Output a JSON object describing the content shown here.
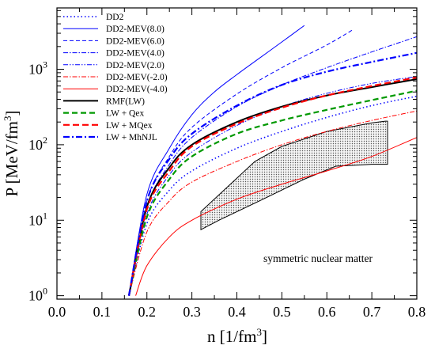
{
  "chart_data": {
    "type": "line",
    "title": "",
    "xlabel": "n [1/fm",
    "xlabel_sup": "3",
    "xlabel_tail": "]",
    "ylabel": "P [MeV/fm",
    "ylabel_sup": "3",
    "ylabel_tail": "]",
    "xlim": [
      0.0,
      0.8
    ],
    "ylim": [
      0.9,
      6500
    ],
    "y_scale": "log",
    "x_ticks": [
      "0.0",
      "0.1",
      "0.2",
      "0.3",
      "0.4",
      "0.5",
      "0.6",
      "0.7",
      "0.8"
    ],
    "x_tick_values": [
      0.0,
      0.1,
      0.2,
      0.3,
      0.4,
      0.5,
      0.6,
      0.7,
      0.8
    ],
    "y_ticks": [
      {
        "base": "10",
        "exp": "0",
        "value": 1
      },
      {
        "base": "10",
        "exp": "1",
        "value": 10
      },
      {
        "base": "10",
        "exp": "2",
        "value": 100
      },
      {
        "base": "10",
        "exp": "3",
        "value": 1000
      }
    ],
    "grid": false,
    "legend_position": "top-left",
    "annotation": "symmetric nuclear matter",
    "band": {
      "upper": [
        [
          0.32,
          13
        ],
        [
          0.44,
          60
        ],
        [
          0.5,
          95
        ],
        [
          0.6,
          150
        ],
        [
          0.7,
          195
        ],
        [
          0.73,
          205
        ],
        [
          0.735,
          205
        ]
      ],
      "lower": [
        [
          0.32,
          7.5
        ],
        [
          0.36,
          10
        ],
        [
          0.45,
          18
        ],
        [
          0.55,
          35
        ],
        [
          0.62,
          52
        ],
        [
          0.7,
          55
        ],
        [
          0.735,
          55
        ]
      ]
    },
    "series": [
      {
        "name": "DD2",
        "color": "#0000ff",
        "dash": "1.5,3",
        "width": 1.5,
        "points": [
          [
            0.16,
            1
          ],
          [
            0.2,
            9
          ],
          [
            0.25,
            25
          ],
          [
            0.3,
            45
          ],
          [
            0.4,
            90
          ],
          [
            0.5,
            150
          ],
          [
            0.6,
            230
          ],
          [
            0.7,
            330
          ],
          [
            0.8,
            440
          ]
        ]
      },
      {
        "name": "DD2-MEV(8.0)",
        "color": "#0000ff",
        "dash": "",
        "width": 1,
        "points": [
          [
            0.16,
            1
          ],
          [
            0.2,
            22
          ],
          [
            0.25,
            90
          ],
          [
            0.3,
            250
          ],
          [
            0.35,
            500
          ],
          [
            0.4,
            850
          ],
          [
            0.45,
            1400
          ],
          [
            0.5,
            2300
          ],
          [
            0.55,
            3800
          ]
        ]
      },
      {
        "name": "DD2-MEV(6.0)",
        "color": "#0000ff",
        "dash": "5,3",
        "width": 1,
        "points": [
          [
            0.16,
            1
          ],
          [
            0.2,
            18
          ],
          [
            0.25,
            70
          ],
          [
            0.3,
            170
          ],
          [
            0.4,
            470
          ],
          [
            0.5,
            1050
          ],
          [
            0.6,
            2100
          ],
          [
            0.66,
            3400
          ]
        ]
      },
      {
        "name": "DD2-MEV(4.0)",
        "color": "#0000ff",
        "dash": "6,2,1.5,2",
        "width": 1,
        "points": [
          [
            0.16,
            1
          ],
          [
            0.2,
            15
          ],
          [
            0.25,
            55
          ],
          [
            0.3,
            125
          ],
          [
            0.4,
            320
          ],
          [
            0.5,
            620
          ],
          [
            0.6,
            1050
          ],
          [
            0.7,
            1700
          ],
          [
            0.8,
            2700
          ]
        ]
      },
      {
        "name": "DD2-MEV(2.0)",
        "color": "#0000ff",
        "dash": "6,2,1.5,2,1.5,2",
        "width": 1,
        "points": [
          [
            0.16,
            1
          ],
          [
            0.2,
            12
          ],
          [
            0.25,
            40
          ],
          [
            0.3,
            80
          ],
          [
            0.4,
            180
          ],
          [
            0.5,
            320
          ],
          [
            0.6,
            480
          ],
          [
            0.7,
            650
          ],
          [
            0.8,
            800
          ]
        ]
      },
      {
        "name": "DD2-MEV(-2.0)",
        "color": "#ff0000",
        "dash": "6,2,1.5,2",
        "width": 1,
        "points": [
          [
            0.16,
            1
          ],
          [
            0.2,
            7
          ],
          [
            0.25,
            18
          ],
          [
            0.3,
            32
          ],
          [
            0.4,
            60
          ],
          [
            0.5,
            100
          ],
          [
            0.6,
            150
          ],
          [
            0.7,
            210
          ],
          [
            0.8,
            280
          ]
        ]
      },
      {
        "name": "DD2-MEV(-4.0)",
        "color": "#ff0000",
        "dash": "",
        "width": 1,
        "points": [
          [
            0.175,
            1
          ],
          [
            0.2,
            2.5
          ],
          [
            0.25,
            6
          ],
          [
            0.3,
            10
          ],
          [
            0.4,
            19
          ],
          [
            0.5,
            30
          ],
          [
            0.6,
            45
          ],
          [
            0.7,
            70
          ],
          [
            0.8,
            125
          ]
        ]
      },
      {
        "name": "RMF(LW)",
        "color": "#000000",
        "dash": "",
        "width": 2,
        "points": [
          [
            0.16,
            1
          ],
          [
            0.2,
            15
          ],
          [
            0.25,
            50
          ],
          [
            0.3,
            100
          ],
          [
            0.4,
            200
          ],
          [
            0.5,
            320
          ],
          [
            0.6,
            450
          ],
          [
            0.7,
            580
          ],
          [
            0.8,
            740
          ]
        ]
      },
      {
        "name": "LW + Qex",
        "color": "#009900",
        "dash": "7,4",
        "width": 2.2,
        "points": [
          [
            0.16,
            1
          ],
          [
            0.2,
            11
          ],
          [
            0.25,
            35
          ],
          [
            0.3,
            70
          ],
          [
            0.4,
            140
          ],
          [
            0.5,
            210
          ],
          [
            0.6,
            290
          ],
          [
            0.7,
            390
          ],
          [
            0.8,
            520
          ]
        ]
      },
      {
        "name": "LW + MQex",
        "color": "#ff0000",
        "dash": "8,4",
        "width": 2.2,
        "points": [
          [
            0.16,
            1
          ],
          [
            0.2,
            14
          ],
          [
            0.25,
            45
          ],
          [
            0.3,
            95
          ],
          [
            0.4,
            190
          ],
          [
            0.5,
            310
          ],
          [
            0.6,
            450
          ],
          [
            0.7,
            600
          ],
          [
            0.8,
            780
          ]
        ]
      },
      {
        "name": "LW + MhNJL",
        "color": "#0000ff",
        "dash": "8,3,2,3",
        "width": 2.2,
        "points": [
          [
            0.16,
            1
          ],
          [
            0.2,
            18
          ],
          [
            0.25,
            65
          ],
          [
            0.3,
            140
          ],
          [
            0.4,
            330
          ],
          [
            0.5,
            620
          ],
          [
            0.6,
            930
          ],
          [
            0.7,
            1250
          ],
          [
            0.8,
            1650
          ]
        ]
      }
    ]
  }
}
